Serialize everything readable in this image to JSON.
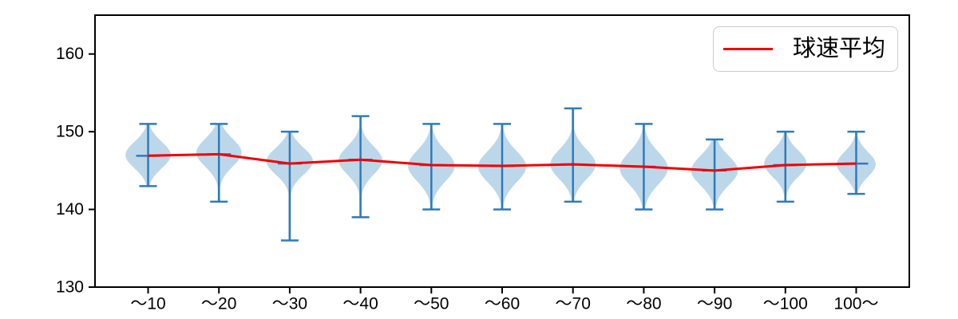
{
  "legend": {
    "label": "球速平均"
  },
  "colors": {
    "violin_fill": "#bdd7ea",
    "violin_line": "#2f7bb8",
    "mean_line": "#f20000",
    "axis": "#000000",
    "tick_label": "#000000",
    "legend_border": "#cccccc",
    "legend_bg": "#ffffff"
  },
  "chart_data": {
    "type": "violin",
    "title": "",
    "xlabel": "",
    "ylabel": "",
    "grid": false,
    "legend_position": "upper right",
    "legend_entries": [
      {
        "label": "球速平均",
        "color": "#f20000",
        "marker": "line"
      }
    ],
    "ylim": [
      130,
      165
    ],
    "yticks": [
      130,
      140,
      150,
      160
    ],
    "categories": [
      "～10",
      "～20",
      "～30",
      "～40",
      "～50",
      "～60",
      "～70",
      "～80",
      "～90",
      "～100",
      "100～"
    ],
    "series": [
      {
        "name": "球速平均",
        "type": "line",
        "values": [
          146.9,
          147.1,
          145.9,
          146.4,
          145.7,
          145.6,
          145.8,
          145.5,
          145.0,
          145.7,
          145.9
        ]
      }
    ],
    "violins": [
      {
        "category": "～10",
        "min": 143,
        "max": 151,
        "mean": 146.9,
        "mode": 147.0,
        "sd": 1.7,
        "width": 0.64
      },
      {
        "category": "～20",
        "min": 141,
        "max": 151,
        "mean": 147.1,
        "mode": 147.3,
        "sd": 1.8,
        "width": 0.64
      },
      {
        "category": "～30",
        "min": 136,
        "max": 150,
        "mean": 145.9,
        "mode": 146.2,
        "sd": 1.7,
        "width": 0.66
      },
      {
        "category": "～40",
        "min": 139,
        "max": 152,
        "mean": 146.4,
        "mode": 146.3,
        "sd": 1.8,
        "width": 0.62
      },
      {
        "category": "～50",
        "min": 140,
        "max": 151,
        "mean": 145.7,
        "mode": 145.6,
        "sd": 2.0,
        "width": 0.66
      },
      {
        "category": "～60",
        "min": 140,
        "max": 151,
        "mean": 145.6,
        "mode": 145.5,
        "sd": 2.0,
        "width": 0.68
      },
      {
        "category": "～70",
        "min": 141,
        "max": 153,
        "mean": 145.8,
        "mode": 145.8,
        "sd": 1.9,
        "width": 0.64
      },
      {
        "category": "～80",
        "min": 140,
        "max": 151,
        "mean": 145.5,
        "mode": 145.3,
        "sd": 2.1,
        "width": 0.68
      },
      {
        "category": "～90",
        "min": 140,
        "max": 149,
        "mean": 145.0,
        "mode": 145.0,
        "sd": 1.9,
        "width": 0.66
      },
      {
        "category": "～100",
        "min": 141,
        "max": 150,
        "mean": 145.7,
        "mode": 145.9,
        "sd": 1.7,
        "width": 0.6
      },
      {
        "category": "100～",
        "min": 142,
        "max": 150,
        "mean": 145.9,
        "mode": 145.8,
        "sd": 1.6,
        "width": 0.55
      }
    ]
  }
}
